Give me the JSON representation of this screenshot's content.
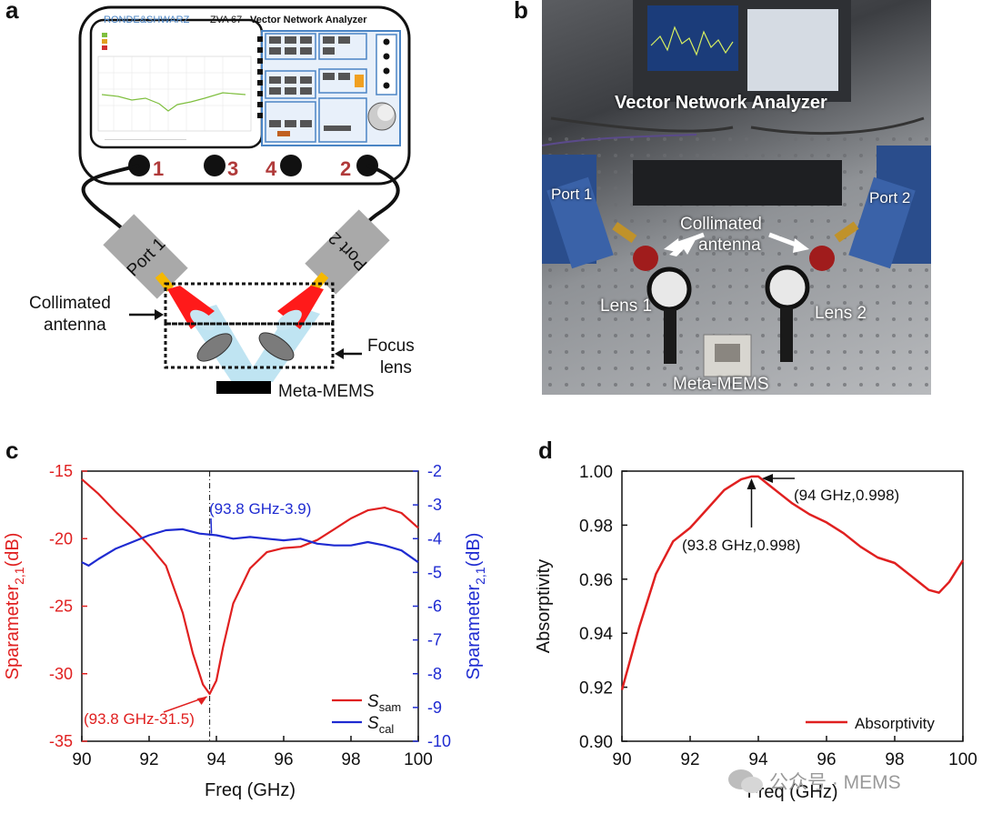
{
  "panel_letters": {
    "a": "a",
    "b": "b",
    "c": "c",
    "d": "d"
  },
  "panel_a": {
    "brand": "RONDE&SHWARZ",
    "model": "ZVA 67",
    "instrument": "Vector Network Analyzer",
    "ports": [
      "1",
      "3",
      "4",
      "2"
    ],
    "port1_box": "Port 1",
    "port2_box": "Port 2",
    "collimated_line1": "Collimated",
    "collimated_line2": "antenna",
    "focus_line1": "Focus",
    "focus_line2": "lens",
    "sample": "Meta-MEMS",
    "colors": {
      "port_box": "#a9a9a9",
      "antenna": "#ff1a1a",
      "connector": "#f5b800",
      "lens": "#7b7b7b",
      "beam": "#bfe4f2",
      "device": "#000000",
      "panel_blue": "#4a84c4"
    }
  },
  "panel_b": {
    "vna": "Vector Network Analyzer",
    "port1": "Port 1",
    "port2": "Port 2",
    "collimated_line1": "Collimated",
    "collimated_line2": "antenna",
    "lens1": "Lens 1",
    "lens2": "Lens 2",
    "sample": "Meta-MEMS"
  },
  "chart_data": [
    {
      "type": "line",
      "panel": "c",
      "xlabel": "Freq (GHz)",
      "ylabel_left": "Sparameter",
      "ylabel_left_sub": "2,1",
      "ylabel_left_unit": "(dB)",
      "ylabel_right": "Sparameter",
      "ylabel_right_sub": "2,1",
      "ylabel_right_unit": "(dB)",
      "xlim": [
        90,
        100
      ],
      "ylim_left": [
        -35,
        -15
      ],
      "ylim_right": [
        -10,
        -2
      ],
      "xticks": [
        "90",
        "92",
        "94",
        "96",
        "98",
        "100"
      ],
      "yticks_left": [
        "-15",
        "-20",
        "-25",
        "-30",
        "-35"
      ],
      "yticks_right": [
        "-2",
        "-3",
        "-4",
        "-5",
        "-6",
        "-7",
        "-8",
        "-9",
        "-10"
      ],
      "marker_x": 93.8,
      "series": [
        {
          "name": "S",
          "sub": "sam",
          "axis": "left",
          "color": "#e02020",
          "x": [
            90,
            90.5,
            91,
            91.5,
            92,
            92.5,
            93,
            93.3,
            93.6,
            93.8,
            94,
            94.2,
            94.5,
            95,
            95.5,
            96,
            96.5,
            97,
            97.5,
            98,
            98.5,
            99,
            99.5,
            100
          ],
          "y": [
            -15.6,
            -16.7,
            -18.0,
            -19.2,
            -20.5,
            -22.0,
            -25.5,
            -28.5,
            -30.8,
            -31.5,
            -30.5,
            -28.0,
            -24.8,
            -22.2,
            -21.0,
            -20.7,
            -20.6,
            -20.1,
            -19.3,
            -18.5,
            -17.9,
            -17.7,
            -18.1,
            -19.2
          ]
        },
        {
          "name": "S",
          "sub": "cal",
          "axis": "right",
          "color": "#1f2bd1",
          "x": [
            90,
            90.2,
            90.5,
            91,
            91.5,
            92,
            92.5,
            93,
            93.5,
            94,
            94.5,
            95,
            95.5,
            96,
            96.5,
            97,
            97.5,
            98,
            98.5,
            99,
            99.5,
            100
          ],
          "y": [
            -4.7,
            -4.8,
            -4.6,
            -4.3,
            -4.1,
            -3.9,
            -3.75,
            -3.72,
            -3.85,
            -3.9,
            -4.0,
            -3.95,
            -4.0,
            -4.05,
            -4.0,
            -4.15,
            -4.2,
            -4.2,
            -4.1,
            -4.2,
            -4.35,
            -4.7
          ]
        }
      ],
      "annotations": [
        {
          "text": "(93.8 GHz-3.9)",
          "color": "#1f2bd1"
        },
        {
          "text": "(93.8 GHz-31.5)",
          "color": "#e02020"
        }
      ],
      "legend": "bottom-right"
    },
    {
      "type": "line",
      "panel": "d",
      "xlabel": "Freq (GHz)",
      "ylabel": "Absorptivity",
      "xlim": [
        90,
        100
      ],
      "ylim": [
        0.9,
        1.0
      ],
      "xticks": [
        "90",
        "92",
        "94",
        "96",
        "98",
        "100"
      ],
      "yticks": [
        "1.00",
        "0.98",
        "0.96",
        "0.94",
        "0.92",
        "0.90"
      ],
      "series": [
        {
          "name": "Absorptivity",
          "color": "#e02020",
          "x": [
            90,
            90.5,
            91,
            91.5,
            92,
            92.5,
            93,
            93.5,
            93.8,
            94,
            94.3,
            94.6,
            95,
            95.5,
            96,
            96.5,
            97,
            97.5,
            98,
            98.5,
            99,
            99.3,
            99.6,
            100
          ],
          "y": [
            0.919,
            0.942,
            0.962,
            0.974,
            0.979,
            0.986,
            0.993,
            0.997,
            0.998,
            0.998,
            0.995,
            0.992,
            0.988,
            0.984,
            0.981,
            0.977,
            0.972,
            0.968,
            0.966,
            0.961,
            0.956,
            0.955,
            0.959,
            0.967
          ]
        }
      ],
      "annotations": [
        {
          "text": "(94 GHz,0.998)"
        },
        {
          "text": "(93.8 GHz,0.998)"
        }
      ],
      "legend": "bottom-right"
    }
  ],
  "watermark": "公众号 · MEMS"
}
